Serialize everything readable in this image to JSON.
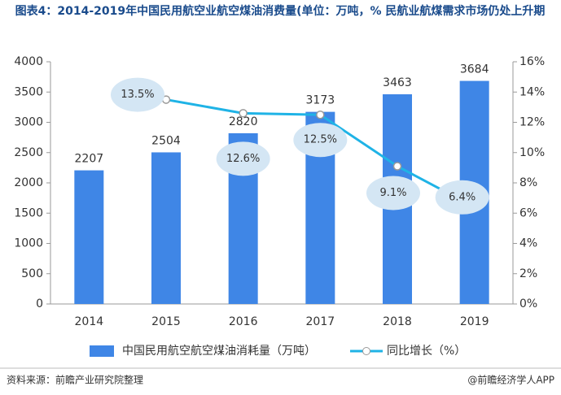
{
  "chart_data": {
    "type": "bar_line",
    "title": "图表4：2014-2019年中国民用航空业航空煤油消费量(单位：万吨，% 民航业航煤需求市场仍处上升期",
    "categories": [
      "2014",
      "2015",
      "2016",
      "2017",
      "2018",
      "2019"
    ],
    "series": [
      {
        "name": "中国民用航空航空煤油消耗量（万吨）",
        "type": "bar",
        "color": "#3f86e6",
        "values": [
          2207,
          2504,
          2820,
          3173,
          3463,
          3684
        ]
      },
      {
        "name": "同比增长（%）",
        "type": "line",
        "axis": "y2",
        "color": "#1fb3e6",
        "values": [
          null,
          13.5,
          12.6,
          12.5,
          9.1,
          6.4
        ],
        "value_labels": [
          null,
          "13.5%",
          "12.6%",
          "12.5%",
          "9.1%",
          "6.4%"
        ]
      }
    ],
    "ylim": [
      0,
      4000
    ],
    "yticks": [
      0,
      500,
      1000,
      1500,
      2000,
      2500,
      3000,
      3500,
      4000
    ],
    "y2lim": [
      0,
      16
    ],
    "y2ticks": [
      {
        "value": 0,
        "label": "0%"
      },
      {
        "value": 2,
        "label": "2%"
      },
      {
        "value": 4,
        "label": "4%"
      },
      {
        "value": 6,
        "label": "6%"
      },
      {
        "value": 8,
        "label": "8%"
      },
      {
        "value": 10,
        "label": "10%"
      },
      {
        "value": 12,
        "label": "12%"
      },
      {
        "value": 14,
        "label": "14%"
      },
      {
        "value": 16,
        "label": "16%"
      }
    ],
    "source": "资料来源：前瞻产业研究院整理",
    "credit": "@前瞻经济学人APP"
  }
}
